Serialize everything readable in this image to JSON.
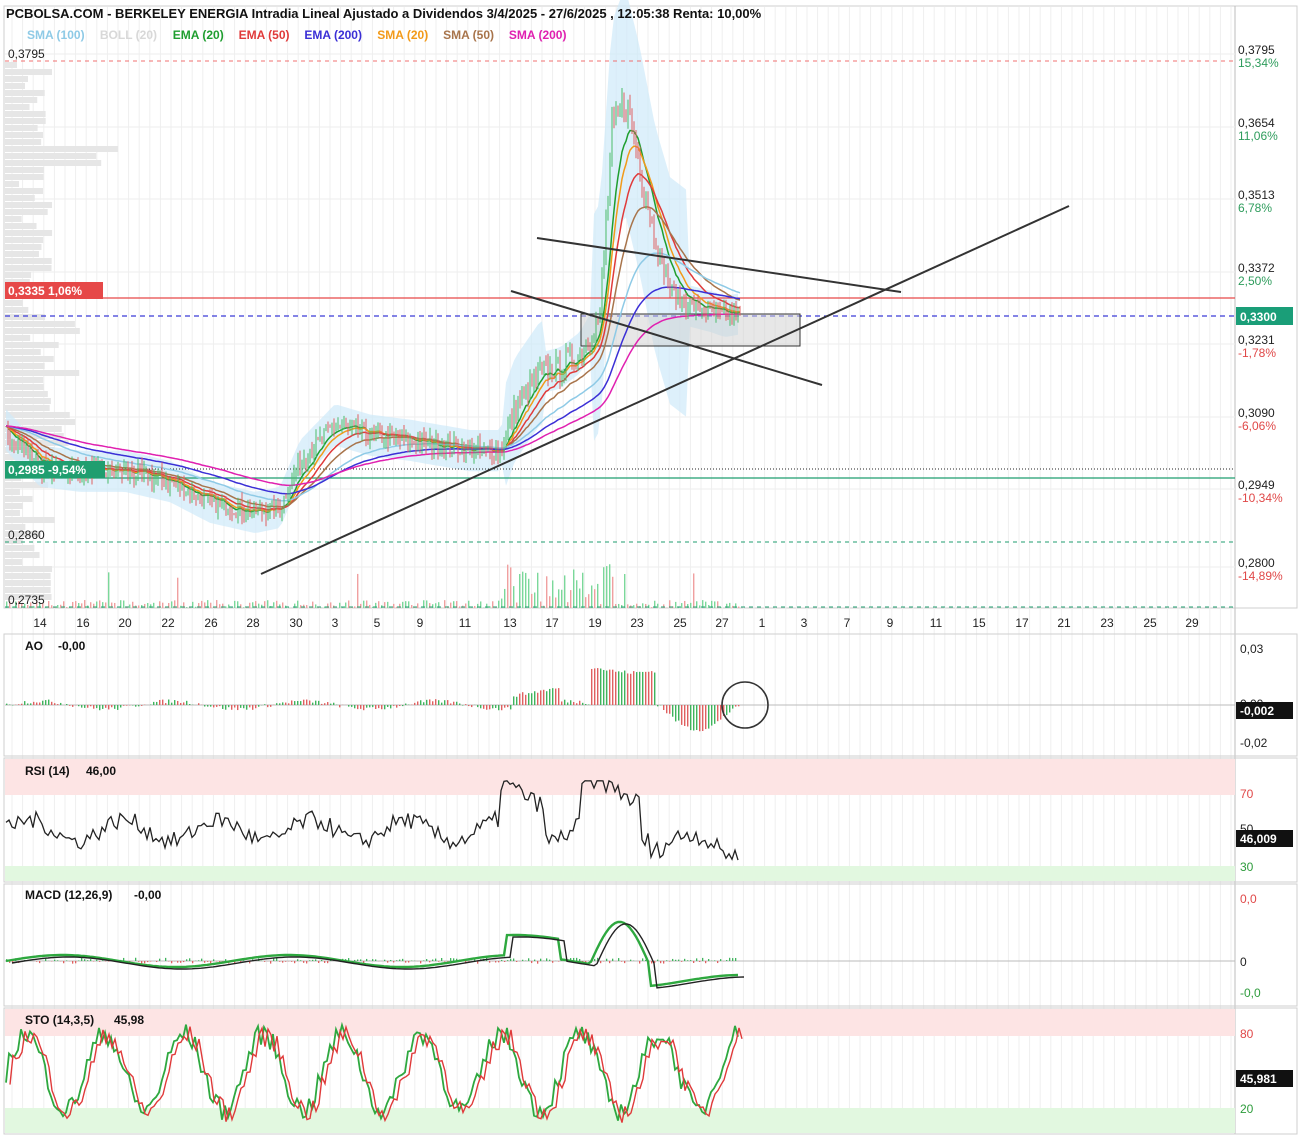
{
  "header": {
    "title": "PCBOLSA.COM - BERKELEY ENERGIA Intradia Lineal Ajustado a Dividendos 3/4/2025 - 27/6/2025 , 12:05:38 Renta: 10,00%"
  },
  "legend": [
    {
      "label": "SMA (100)",
      "color": "#8ecae6"
    },
    {
      "label": "BOLL (20)",
      "color": "#d8d8d8"
    },
    {
      "label": "EMA (20)",
      "color": "#1f9e2f"
    },
    {
      "label": "EMA (50)",
      "color": "#e03a3a"
    },
    {
      "label": "EMA (200)",
      "color": "#3b2fd6"
    },
    {
      "label": "SMA (20)",
      "color": "#f29a1a"
    },
    {
      "label": "SMA (50)",
      "color": "#a8744b"
    },
    {
      "label": "SMA (200)",
      "color": "#e020b0"
    }
  ],
  "price_axis": {
    "ticks": [
      {
        "value": "0,3795",
        "pct": "15,34%",
        "pct_color": "#2e9c5c"
      },
      {
        "value": "0,3654",
        "pct": "11,06%",
        "pct_color": "#2e9c5c"
      },
      {
        "value": "0,3513",
        "pct": "6,78%",
        "pct_color": "#2e9c5c"
      },
      {
        "value": "0,3372",
        "pct": "2,50%",
        "pct_color": "#2e9c5c"
      },
      {
        "value": "0,3231",
        "pct": "-1,78%",
        "pct_color": "#e04848"
      },
      {
        "value": "0,3090",
        "pct": "-6,06%",
        "pct_color": "#e04848"
      },
      {
        "value": "0,2949",
        "pct": "-10,34%",
        "pct_color": "#e04848"
      },
      {
        "value": "0,2800",
        "pct": "-14,89%",
        "pct_color": "#e04848"
      }
    ],
    "current_price": "0,3300",
    "current_color": "#1a9e78"
  },
  "left_levels": {
    "top": "0,3795",
    "red_line": "0,3335  1,06%",
    "green_line": "0,2985  -9,54%",
    "mid_low": "0,2860",
    "bottom": "0,2735"
  },
  "date_axis": [
    "14",
    "16",
    "20",
    "22",
    "26",
    "28",
    "30",
    "3",
    "5",
    "9",
    "11",
    "13",
    "17",
    "19",
    "23",
    "25",
    "27",
    "1",
    "3",
    "7",
    "9",
    "11",
    "15",
    "17",
    "21",
    "23",
    "25",
    "29"
  ],
  "indicators": {
    "ao": {
      "label": "AO",
      "value": "-0,00",
      "ticks": [
        "0,03",
        "0,00",
        "-0,02"
      ],
      "current": "-0,002"
    },
    "rsi": {
      "label": "RSI (14)",
      "value": "46,00",
      "ticks": [
        "70",
        "50",
        "30"
      ],
      "current": "46,009"
    },
    "macd": {
      "label": "MACD (12,26,9)",
      "value": "-0,00",
      "ticks": [
        "0,0",
        "0",
        "-0,0"
      ],
      "current": ""
    },
    "sto": {
      "label": "STO (14,3,5)",
      "value": "45,98",
      "ticks": [
        "80",
        "20"
      ],
      "current": "45,981"
    }
  },
  "chart_data": {
    "type": "line",
    "title": "PCBOLSA.COM - BERKELEY ENERGIA Intradia Lineal Ajustado a Dividendos 3/4/2025 - 27/6/2025 , 12:05:38 Renta: 10,00%",
    "x_ticks": [
      "14",
      "16",
      "20",
      "22",
      "26",
      "28",
      "30",
      "3",
      "5",
      "9",
      "11",
      "13",
      "17",
      "19",
      "23",
      "25",
      "27"
    ],
    "ylim": [
      0.2735,
      0.383
    ],
    "price_series": [
      {
        "x": "14",
        "y": 0.3
      },
      {
        "x": "16",
        "y": 0.299
      },
      {
        "x": "20",
        "y": 0.298
      },
      {
        "x": "22",
        "y": 0.296
      },
      {
        "x": "26",
        "y": 0.293
      },
      {
        "x": "28",
        "y": 0.291
      },
      {
        "x": "30",
        "y": 0.302
      },
      {
        "x": "3",
        "y": 0.31
      },
      {
        "x": "5",
        "y": 0.306
      },
      {
        "x": "9",
        "y": 0.307
      },
      {
        "x": "11",
        "y": 0.305
      },
      {
        "x": "13",
        "y": 0.304
      },
      {
        "x": "17",
        "y": 0.32
      },
      {
        "x": "19",
        "y": 0.332
      },
      {
        "x": "23",
        "y": 0.362
      },
      {
        "x": "25",
        "y": 0.333
      },
      {
        "x": "27",
        "y": 0.33
      }
    ],
    "levels": {
      "red": 0.3335,
      "blue_dashed": 0.33,
      "green": 0.2985,
      "black_dotted": 0.3,
      "top_dashed": 0.3795,
      "mid_dashed": 0.286,
      "bottom_dashed": 0.2735
    },
    "indicators": {
      "ao_last": -0.002,
      "rsi_last": 46.009,
      "rsi_bands": [
        30,
        70
      ],
      "sto_last": 45.981,
      "sto_bands": [
        20,
        80
      ]
    }
  }
}
